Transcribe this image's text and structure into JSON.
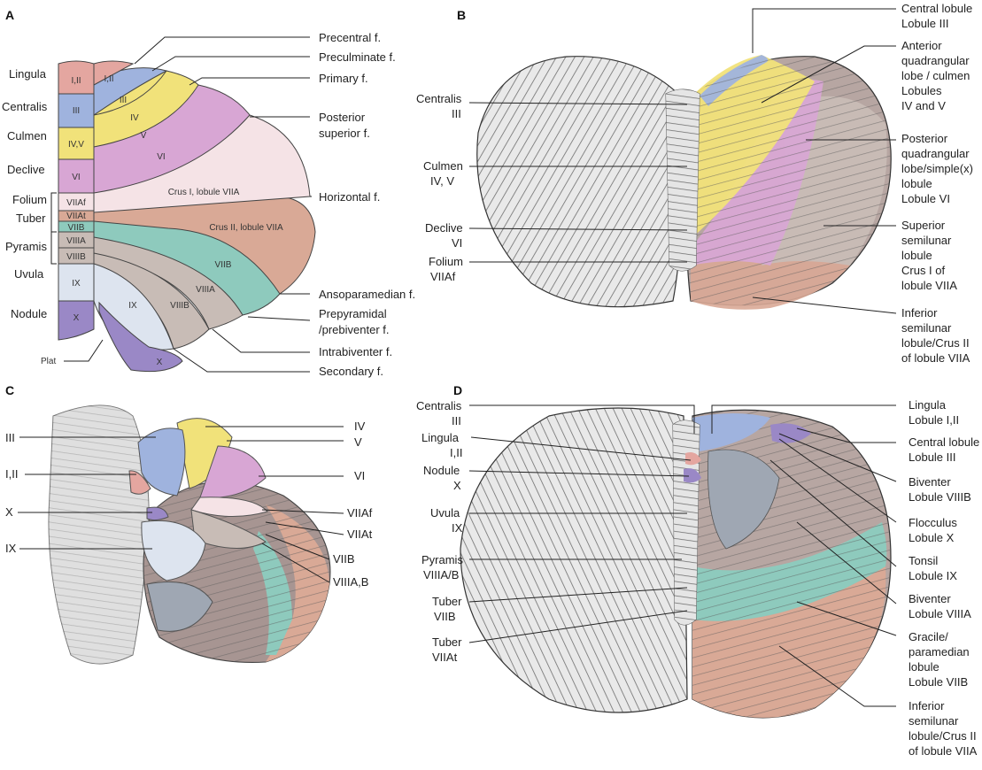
{
  "panels": {
    "A": {
      "letter": "A",
      "left_labels": [
        "Lingula",
        "Centralis",
        "Culmen",
        "Declive",
        "Folium",
        "Tuber",
        "Pyramis",
        "Uvula",
        "Nodule"
      ],
      "plat": "Plat",
      "col_labels": [
        "I,II",
        "III",
        "IV,V",
        "VI",
        "VIIAf",
        "VIIAt",
        "VIIB",
        "VIIIA",
        "VIIIB",
        "IX",
        "X"
      ],
      "inner_labels": [
        "I,II",
        "III",
        "IV",
        "V",
        "VI",
        "Crus I, lobule VIIA",
        "Crus II, lobule VIIA",
        "VIIB",
        "VIIIA",
        "VIIIB",
        "IX",
        "X"
      ],
      "fissures": [
        "Precentral f.",
        "Preculminate f.",
        "Primary f.",
        "Posterior",
        "superior f.",
        "Horizontal f.",
        "Ansoparamedian f.",
        "Prepyramidal",
        "/prebiventer f.",
        "Intrabiventer f.",
        "Secondary f."
      ]
    },
    "B": {
      "letter": "B",
      "left": [
        "Centralis",
        "III",
        "Culmen",
        "IV, V",
        "Declive",
        "VI",
        "Folium",
        "VIIAf"
      ],
      "right": [
        [
          "Central lobule",
          "Lobule III"
        ],
        [
          "Anterior",
          "quadrangular",
          "lobe / culmen",
          "Lobules",
          "IV and V"
        ],
        [
          "Posterior",
          "quadrangular",
          "lobe/simple(x)",
          "lobule",
          "Lobule VI"
        ],
        [
          "Superior",
          "semilunar",
          "lobule",
          "Crus I of",
          "lobule VIIA"
        ],
        [
          "Inferior",
          "semilunar",
          "lobule/Crus II",
          "of lobule VIIA"
        ]
      ]
    },
    "C": {
      "letter": "C",
      "left": [
        "III",
        "I,II",
        "X",
        "IX"
      ],
      "right": [
        "IV",
        "V",
        "VI",
        "VIIAf",
        "VIIAt",
        "VIIB",
        "VIIIA,B"
      ]
    },
    "D": {
      "letter": "D",
      "left": [
        [
          "Centralis",
          "III"
        ],
        [
          "Lingula",
          "I,II"
        ],
        [
          "Nodule",
          "X"
        ],
        [
          "Uvula",
          "IX"
        ],
        [
          "Pyramis",
          "VIIIA/B"
        ],
        [
          "Tuber",
          "VIIB"
        ],
        [
          "Tuber",
          "VIIAt"
        ]
      ],
      "right": [
        [
          "Lingula",
          "Lobule I,II"
        ],
        [
          "Central lobule",
          "Lobule III"
        ],
        [
          "Biventer",
          "Lobule VIIIB"
        ],
        [
          "Flocculus",
          "Lobule X"
        ],
        [
          "Tonsil",
          "Lobule IX"
        ],
        [
          "Biventer",
          "Lobule VIIIA"
        ],
        [
          "Gracile/",
          "paramedian",
          "lobule",
          "Lobule VIIB"
        ],
        [
          "Inferior",
          "semilunar",
          "lobule/Crus II",
          "of lobule VIIA"
        ]
      ]
    }
  },
  "colors": {
    "lingula": "#e4a6a0",
    "central": "#9fb3de",
    "culmen": "#f1e27a",
    "declive": "#d8a6d4",
    "crus1": "#f5e3e6",
    "crus2": "#d9a996",
    "viib": "#8ecabd",
    "viii": "#c8bcb6",
    "uvula": "#dde4ef",
    "nodule": "#9a88c6",
    "brain_gray": "#9a9a9a"
  }
}
